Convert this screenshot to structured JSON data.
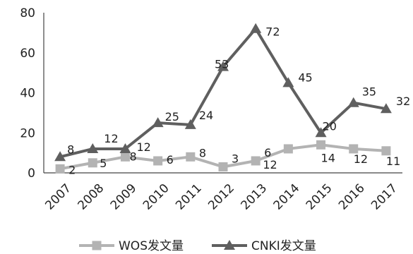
{
  "chart_data": {
    "type": "line",
    "title": "",
    "xlabel": "",
    "ylabel": "",
    "categories": [
      "2007",
      "2008",
      "2009",
      "2010",
      "2011",
      "2012",
      "2013",
      "2014",
      "2015",
      "2016",
      "2017"
    ],
    "ylim": [
      0,
      80
    ],
    "yticks": [
      0,
      20,
      40,
      60,
      80
    ],
    "grid": false,
    "legend_position": "bottom",
    "series": [
      {
        "name": "WOS发文量",
        "marker": "square",
        "color": "#b3b3b3",
        "values": [
          2,
          5,
          8,
          6,
          8,
          3,
          6,
          12,
          14,
          12,
          11
        ]
      },
      {
        "name": "CNKI发文量",
        "marker": "triangle",
        "color": "#5f5f5f",
        "values": [
          8,
          12,
          12,
          25,
          24,
          53,
          72,
          45,
          20,
          35,
          32
        ]
      }
    ]
  }
}
